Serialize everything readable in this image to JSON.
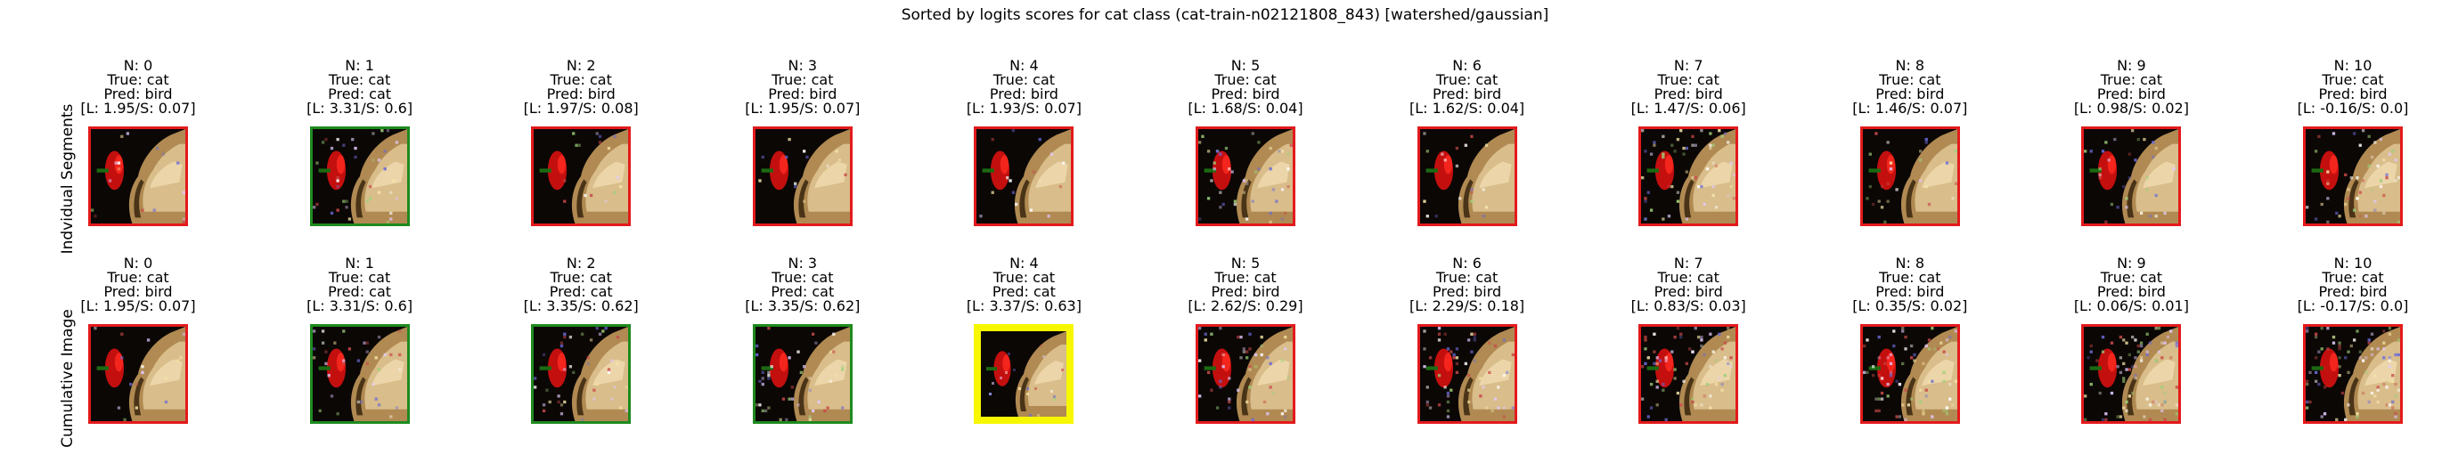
{
  "title": "Sorted by logits scores for cat class (cat-train-n02121808_843) [watershed/gaussian]",
  "colors": {
    "red": "#e31a1c",
    "green": "#1e8a1e",
    "yellow": "#f7f700",
    "background": "#ffffff"
  },
  "rows": [
    {
      "label": "Indvidual Segments",
      "cells": [
        {
          "n": "N: 0",
          "true": "True: cat",
          "pred": "Pred: bird",
          "score": "[L: 1.95/S: 0.07]",
          "frame": "red",
          "noise": 0.05
        },
        {
          "n": "N: 1",
          "true": "True: cat",
          "pred": "Pred: cat",
          "score": "[L: 3.31/S: 0.6]",
          "frame": "green",
          "noise": 0.12
        },
        {
          "n": "N: 2",
          "true": "True: cat",
          "pred": "Pred: bird",
          "score": "[L: 1.97/S: 0.08]",
          "frame": "red",
          "noise": 0.05
        },
        {
          "n": "N: 3",
          "true": "True: cat",
          "pred": "Pred: bird",
          "score": "[L: 1.95/S: 0.07]",
          "frame": "red",
          "noise": 0.04
        },
        {
          "n": "N: 4",
          "true": "True: cat",
          "pred": "Pred: bird",
          "score": "[L: 1.93/S: 0.07]",
          "frame": "red",
          "noise": 0.05
        },
        {
          "n": "N: 5",
          "true": "True: cat",
          "pred": "Pred: bird",
          "score": "[L: 1.68/S: 0.04]",
          "frame": "red",
          "noise": 0.14
        },
        {
          "n": "N: 6",
          "true": "True: cat",
          "pred": "Pred: bird",
          "score": "[L: 1.62/S: 0.04]",
          "frame": "red",
          "noise": 0.06
        },
        {
          "n": "N: 7",
          "true": "True: cat",
          "pred": "Pred: bird",
          "score": "[L: 1.47/S: 0.06]",
          "frame": "red",
          "noise": 0.18
        },
        {
          "n": "N: 8",
          "true": "True: cat",
          "pred": "Pred: bird",
          "score": "[L: 1.46/S: 0.07]",
          "frame": "red",
          "noise": 0.08
        },
        {
          "n": "N: 9",
          "true": "True: cat",
          "pred": "Pred: bird",
          "score": "[L: 0.98/S: 0.02]",
          "frame": "red",
          "noise": 0.1
        },
        {
          "n": "N: 10",
          "true": "True: cat",
          "pred": "Pred: bird",
          "score": "[L: -0.16/S: 0.0]",
          "frame": "red",
          "noise": 0.16
        }
      ]
    },
    {
      "label": "Cumulative Image",
      "cells": [
        {
          "n": "N: 0",
          "true": "True: cat",
          "pred": "Pred: bird",
          "score": "[L: 1.95/S: 0.07]",
          "frame": "red",
          "noise": 0.05
        },
        {
          "n": "N: 1",
          "true": "True: cat",
          "pred": "Pred: cat",
          "score": "[L: 3.31/S: 0.6]",
          "frame": "green",
          "noise": 0.12
        },
        {
          "n": "N: 2",
          "true": "True: cat",
          "pred": "Pred: cat",
          "score": "[L: 3.35/S: 0.62]",
          "frame": "green",
          "noise": 0.13
        },
        {
          "n": "N: 3",
          "true": "True: cat",
          "pred": "Pred: cat",
          "score": "[L: 3.35/S: 0.62]",
          "frame": "green",
          "noise": 0.14
        },
        {
          "n": "N: 4",
          "true": "True: cat",
          "pred": "Pred: cat",
          "score": "[L: 3.37/S: 0.63]",
          "frame": "yellow",
          "noise": 0.06
        },
        {
          "n": "N: 5",
          "true": "True: cat",
          "pred": "Pred: bird",
          "score": "[L: 2.62/S: 0.29]",
          "frame": "red",
          "noise": 0.16
        },
        {
          "n": "N: 6",
          "true": "True: cat",
          "pred": "Pred: bird",
          "score": "[L: 2.29/S: 0.18]",
          "frame": "red",
          "noise": 0.18
        },
        {
          "n": "N: 7",
          "true": "True: cat",
          "pred": "Pred: bird",
          "score": "[L: 0.83/S: 0.03]",
          "frame": "red",
          "noise": 0.22
        },
        {
          "n": "N: 8",
          "true": "True: cat",
          "pred": "Pred: bird",
          "score": "[L: 0.35/S: 0.02]",
          "frame": "red",
          "noise": 0.24
        },
        {
          "n": "N: 9",
          "true": "True: cat",
          "pred": "Pred: bird",
          "score": "[L: 0.06/S: 0.01]",
          "frame": "red",
          "noise": 0.26
        },
        {
          "n": "N: 10",
          "true": "True: cat",
          "pred": "Pred: bird",
          "score": "[L: -0.17/S: 0.0]",
          "frame": "red",
          "noise": 0.28
        }
      ]
    }
  ]
}
